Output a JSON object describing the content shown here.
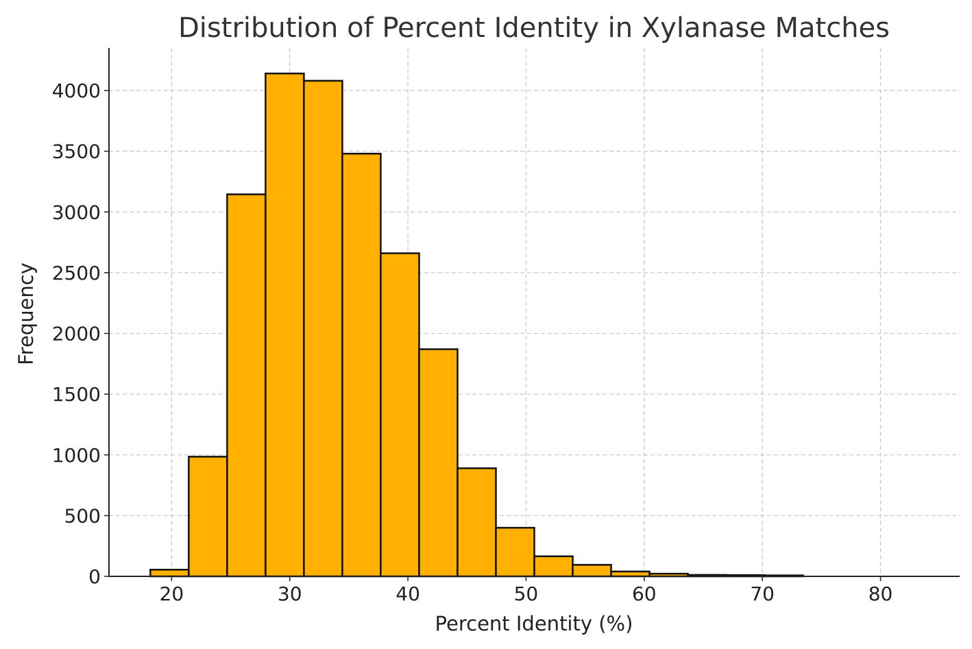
{
  "chart_data": {
    "type": "bar",
    "title": "Distribution of Percent Identity in Xylanase Matches",
    "xlabel": "Percent Identity (%)",
    "ylabel": "Frequency",
    "xlim": [
      14.7,
      86.7
    ],
    "ylim": [
      0,
      4350
    ],
    "xticks": [
      20,
      30,
      40,
      50,
      60,
      70,
      80
    ],
    "yticks": [
      0,
      500,
      1000,
      1500,
      2000,
      2500,
      3000,
      3500,
      4000
    ],
    "grid": true,
    "legend": "none",
    "bar_color": "#ffb000",
    "edge_color": "#111111",
    "bins": [
      {
        "x0": 18.2,
        "x1": 21.45,
        "value": 55
      },
      {
        "x0": 21.45,
        "x1": 24.7,
        "value": 985
      },
      {
        "x0": 24.7,
        "x1": 27.95,
        "value": 3145
      },
      {
        "x0": 27.95,
        "x1": 31.2,
        "value": 4140
      },
      {
        "x0": 31.2,
        "x1": 34.45,
        "value": 4080
      },
      {
        "x0": 34.45,
        "x1": 37.7,
        "value": 3480
      },
      {
        "x0": 37.7,
        "x1": 40.95,
        "value": 2660
      },
      {
        "x0": 40.95,
        "x1": 44.2,
        "value": 1870
      },
      {
        "x0": 44.2,
        "x1": 47.45,
        "value": 890
      },
      {
        "x0": 47.45,
        "x1": 50.7,
        "value": 400
      },
      {
        "x0": 50.7,
        "x1": 53.95,
        "value": 165
      },
      {
        "x0": 53.95,
        "x1": 57.2,
        "value": 95
      },
      {
        "x0": 57.2,
        "x1": 60.45,
        "value": 40
      },
      {
        "x0": 60.45,
        "x1": 63.7,
        "value": 22
      },
      {
        "x0": 63.7,
        "x1": 66.95,
        "value": 12
      },
      {
        "x0": 66.95,
        "x1": 70.2,
        "value": 10
      },
      {
        "x0": 70.2,
        "x1": 73.45,
        "value": 8
      }
    ]
  }
}
